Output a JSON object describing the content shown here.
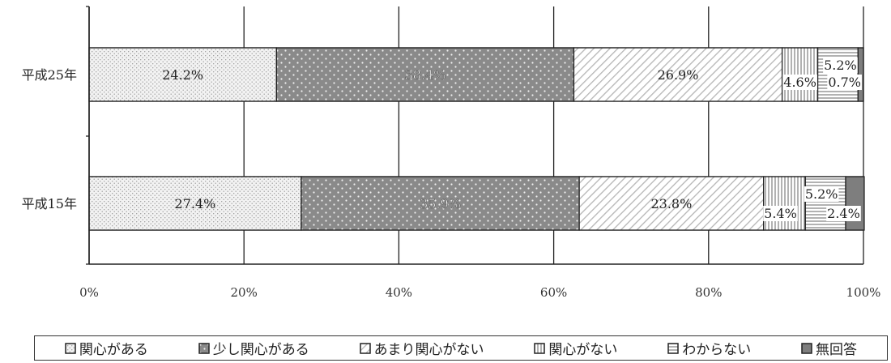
{
  "chart_data": {
    "type": "bar",
    "orientation": "horizontal",
    "stacked": true,
    "categories": [
      "平成25年",
      "平成15年"
    ],
    "series": [
      {
        "name": "関心がある",
        "values": [
          24.2,
          27.4
        ]
      },
      {
        "name": "少し関心がある",
        "values": [
          38.4,
          35.9
        ]
      },
      {
        "name": "あまり関心がない",
        "values": [
          26.9,
          23.8
        ]
      },
      {
        "name": "関心がない",
        "values": [
          4.6,
          5.4
        ]
      },
      {
        "name": "わからない",
        "values": [
          5.2,
          5.2
        ]
      },
      {
        "name": "無回答",
        "values": [
          0.7,
          2.4
        ]
      }
    ],
    "data_labels": [
      [
        "24.2%",
        "38.4%",
        "26.9%",
        "4.6%",
        "5.2%",
        "0.7%"
      ],
      [
        "27.4%",
        "35.9%",
        "23.8%",
        "5.4%",
        "5.2%",
        "2.4%"
      ]
    ],
    "x_ticks": [
      "0%",
      "20%",
      "40%",
      "60%",
      "80%",
      "100%"
    ],
    "xlim": [
      0,
      100
    ],
    "grid": true,
    "legend_position": "bottom",
    "title": "",
    "xlabel": "",
    "ylabel": ""
  },
  "legend": {
    "items": [
      {
        "label": "関心がある",
        "pattern": "fine-dots"
      },
      {
        "label": "少し関心がある",
        "pattern": "dark-dots"
      },
      {
        "label": "あまり関心がない",
        "pattern": "diagonal"
      },
      {
        "label": "関心がない",
        "pattern": "vertical"
      },
      {
        "label": "わからない",
        "pattern": "horizontal"
      },
      {
        "label": "無回答",
        "pattern": "solid-gray"
      }
    ]
  }
}
